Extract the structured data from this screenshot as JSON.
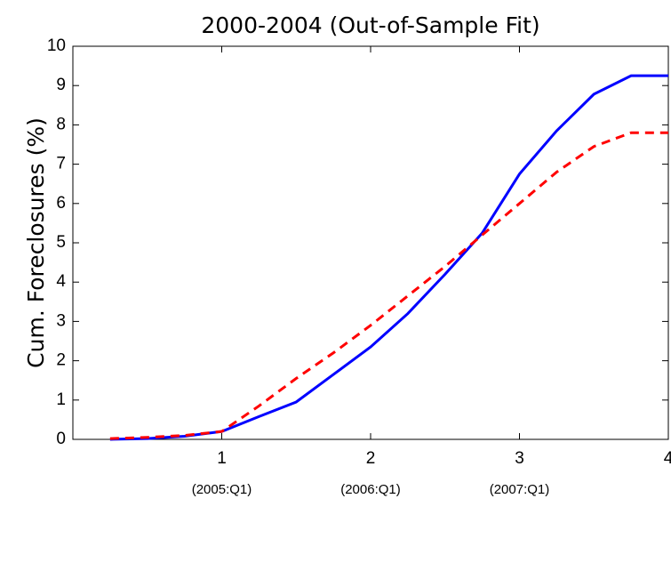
{
  "chart_data": {
    "type": "line",
    "title": "2000-2004 (Out-of-Sample Fit)",
    "y_label": "Cum.  Foreclosures (%)",
    "x": [
      0.25,
      0.5,
      0.75,
      1,
      1.25,
      1.5,
      1.75,
      2,
      2.25,
      2.5,
      2.75,
      3,
      3.25,
      3.5,
      3.75,
      4
    ],
    "series": [
      {
        "color": "#0000ff",
        "dash": false,
        "values": [
          0,
          0.02,
          0.08,
          0.2,
          0.58,
          0.95,
          1.65,
          2.35,
          3.2,
          4.2,
          5.25,
          6.75,
          7.85,
          8.78,
          9.25,
          9.25
        ]
      },
      {
        "color": "#ff0000",
        "dash": true,
        "values": [
          0.02,
          0.05,
          0.1,
          0.2,
          0.85,
          1.55,
          2.2,
          2.9,
          3.65,
          4.4,
          5.2,
          6.0,
          6.8,
          7.45,
          7.8,
          7.8
        ]
      }
    ],
    "xlim": [
      0,
      4
    ],
    "xticks": [
      1,
      2,
      3,
      4
    ],
    "x_tick_sublabels": [
      "(2005:Q1)",
      "(2006:Q1)",
      "(2007:Q1)"
    ],
    "ylim": [
      0,
      10
    ],
    "yticks": [
      0,
      1,
      2,
      3,
      4,
      5,
      6,
      7,
      8,
      9,
      10
    ]
  }
}
